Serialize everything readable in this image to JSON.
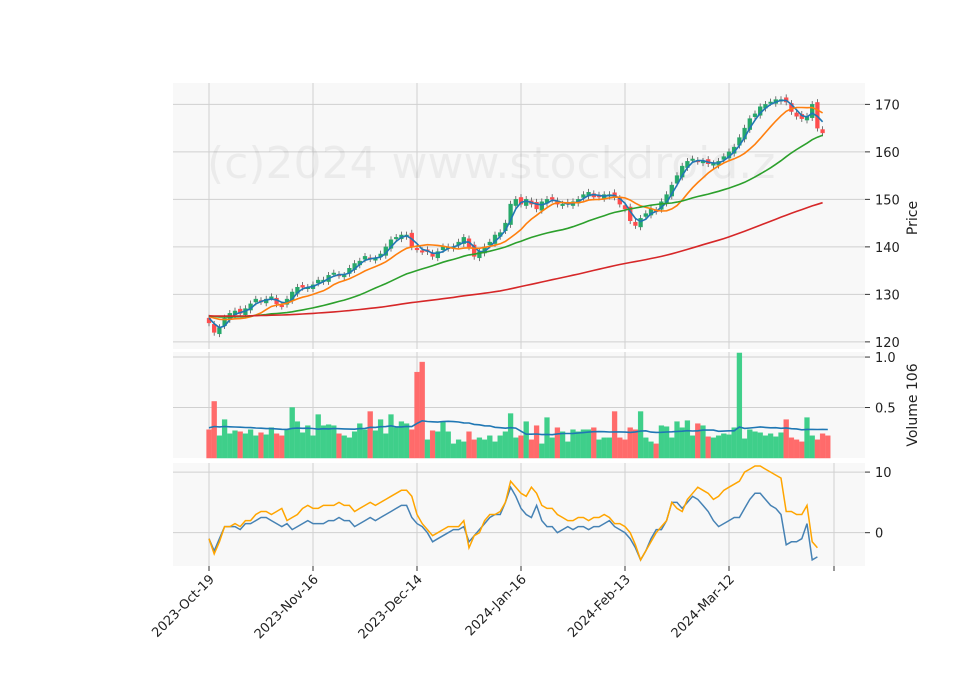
{
  "watermark": "(c)2024 www.stockdroid.z",
  "chart_data": [
    {
      "type": "candlestick",
      "ylabel": "Price",
      "ylim": [
        118.5,
        174.5
      ],
      "yticks": [
        120,
        130,
        140,
        150,
        160,
        170
      ],
      "grid": true,
      "x_tick_labels": [
        "2023-Oct-19",
        "2023-Nov-16",
        "2023-Dec-14",
        "2024-Jan-16",
        "2024-Feb-13",
        "2024-Mar-12"
      ],
      "x_tick_index": [
        0,
        20,
        40,
        60,
        80,
        100
      ],
      "close": [
        124,
        122,
        123,
        125,
        126,
        126.5,
        126,
        127,
        128,
        129,
        128.5,
        129,
        129.5,
        128,
        127.5,
        129,
        130.5,
        131.5,
        131.5,
        131.5,
        132,
        133,
        133,
        134,
        134.5,
        134,
        134,
        135.5,
        136.5,
        137,
        138,
        137.5,
        137.5,
        138.5,
        140,
        141.5,
        142,
        142.5,
        142.5,
        140,
        139.5,
        139,
        139,
        138,
        139,
        140,
        140,
        140,
        141,
        142,
        140,
        138,
        139,
        140,
        141,
        142.5,
        143,
        145,
        149,
        150,
        149,
        150,
        149,
        148,
        149.5,
        150,
        150,
        149,
        149,
        149,
        149.5,
        150,
        151,
        151.5,
        150.5,
        150.5,
        151,
        151,
        150.5,
        149,
        148,
        145.5,
        144.5,
        146,
        147,
        148,
        147.5,
        149.5,
        151,
        153,
        155,
        157,
        158,
        158.5,
        158,
        158,
        157.5,
        157.5,
        158,
        159,
        160,
        161,
        163,
        165,
        167,
        168,
        169.5,
        170,
        170.5,
        171,
        171,
        170.5,
        168.5,
        167.5,
        167,
        167.5,
        170,
        165,
        164
      ],
      "mav_periods": [
        3,
        10,
        30,
        100
      ],
      "mav_colors": [
        "#1f77b4",
        "#ff7f0e",
        "#2ca02c",
        "#d62728"
      ],
      "up_color": "#26a86a",
      "down_color": "#ff4d4d"
    },
    {
      "type": "bar",
      "ylabel": "Volume  10^6",
      "ylim": [
        0,
        1.05
      ],
      "yticks": [
        0.5,
        1.0
      ],
      "ytick_labels": [
        "0.5",
        "1.0"
      ],
      "grid": true,
      "values": [
        0.28,
        0.56,
        0.22,
        0.38,
        0.24,
        0.27,
        0.26,
        0.24,
        0.28,
        0.22,
        0.25,
        0.23,
        0.3,
        0.24,
        0.22,
        0.28,
        0.5,
        0.36,
        0.25,
        0.32,
        0.22,
        0.43,
        0.32,
        0.33,
        0.32,
        0.24,
        0.22,
        0.2,
        0.26,
        0.34,
        0.28,
        0.46,
        0.27,
        0.38,
        0.24,
        0.43,
        0.3,
        0.36,
        0.34,
        0.28,
        0.85,
        0.95,
        0.18,
        0.27,
        0.26,
        0.36,
        0.26,
        0.14,
        0.18,
        0.16,
        0.26,
        0.18,
        0.2,
        0.18,
        0.22,
        0.16,
        0.22,
        0.26,
        0.44,
        0.2,
        0.22,
        0.36,
        0.18,
        0.32,
        0.14,
        0.4,
        0.2,
        0.3,
        0.26,
        0.16,
        0.28,
        0.26,
        0.28,
        0.28,
        0.3,
        0.18,
        0.2,
        0.2,
        0.46,
        0.2,
        0.18,
        0.3,
        0.28,
        0.46,
        0.2,
        0.16,
        0.14,
        0.32,
        0.31,
        0.2,
        0.36,
        0.3,
        0.37,
        0.22,
        0.34,
        0.32,
        0.21,
        0.2,
        0.22,
        0.24,
        0.23,
        0.3,
        1.04,
        0.19,
        0.28,
        0.26,
        0.25,
        0.22,
        0.24,
        0.21,
        0.25,
        0.38,
        0.2,
        0.18,
        0.16,
        0.4,
        0.22,
        0.18,
        0.24,
        0.22
      ],
      "avg_color": "#1f77b4"
    },
    {
      "type": "line",
      "ylim": [
        -5.5,
        11.5
      ],
      "yticks": [
        0,
        10
      ],
      "grid": true,
      "series": [
        {
          "color": "#4682b4",
          "values": [
            -1,
            -3,
            -1,
            1,
            1,
            1,
            0.5,
            1.5,
            1.5,
            2,
            2.5,
            2.5,
            2,
            1.5,
            1,
            1.5,
            0.5,
            1,
            1.5,
            2,
            1.5,
            1.5,
            1.5,
            2,
            2,
            2.5,
            2,
            2,
            1,
            1.5,
            2,
            2.5,
            2,
            2.5,
            3,
            3.5,
            4,
            4.5,
            4.5,
            2.5,
            1.5,
            1,
            0,
            -1.5,
            -1,
            -0.5,
            0,
            0.5,
            0.5,
            1,
            -1.5,
            -0.5,
            0.5,
            1.5,
            2.5,
            3,
            3,
            5,
            7.5,
            6,
            4,
            3,
            2.5,
            4.5,
            2,
            1,
            1,
            0,
            0.5,
            1,
            0.5,
            1,
            1,
            0.5,
            1,
            1,
            1.5,
            2,
            1,
            0.5,
            0,
            -1,
            -2.5,
            -4.5,
            -3,
            -1,
            0.5,
            0.5,
            2,
            5,
            5,
            4,
            5,
            6,
            5.5,
            4.5,
            3.5,
            2,
            1,
            1.5,
            2,
            2.5,
            2.5,
            4,
            5.5,
            6.5,
            6.5,
            5.5,
            4.5,
            4,
            3,
            -2,
            -1.5,
            -1.5,
            -1,
            1.5,
            -4.5,
            -4
          ]
        },
        {
          "color": "#ffa500",
          "values": [
            -1,
            -3.5,
            -1.5,
            1,
            1,
            1.5,
            1,
            2,
            2,
            3,
            3.5,
            3.5,
            3,
            3.5,
            4,
            2,
            2.5,
            3,
            4,
            4.5,
            4,
            4,
            4.5,
            4.5,
            4.5,
            5,
            4.5,
            4.5,
            3.5,
            4,
            4.5,
            5,
            4.5,
            5,
            5.5,
            6,
            6.5,
            7,
            7,
            6,
            3,
            1.5,
            0.5,
            -0.5,
            0,
            0.5,
            1,
            1,
            1,
            2,
            -2.5,
            -0.5,
            0,
            2,
            3,
            3,
            3.5,
            5,
            8.5,
            7.5,
            6.5,
            6,
            7.5,
            6.5,
            4.5,
            4,
            4,
            3,
            2.5,
            2,
            2,
            2.5,
            2.5,
            2,
            2.5,
            2.5,
            3,
            2.5,
            1.5,
            1.5,
            1,
            0,
            -2,
            -4.5,
            -3,
            -1.5,
            0,
            1,
            2,
            5,
            4,
            3.5,
            5.5,
            6.5,
            7.5,
            7,
            6.5,
            5.5,
            6,
            7,
            7.5,
            8,
            8.5,
            10,
            10.5,
            11,
            11,
            10.5,
            10,
            9.5,
            9,
            3.5,
            3.5,
            3,
            3,
            4.5,
            -1.5,
            -2.5
          ]
        }
      ]
    }
  ]
}
